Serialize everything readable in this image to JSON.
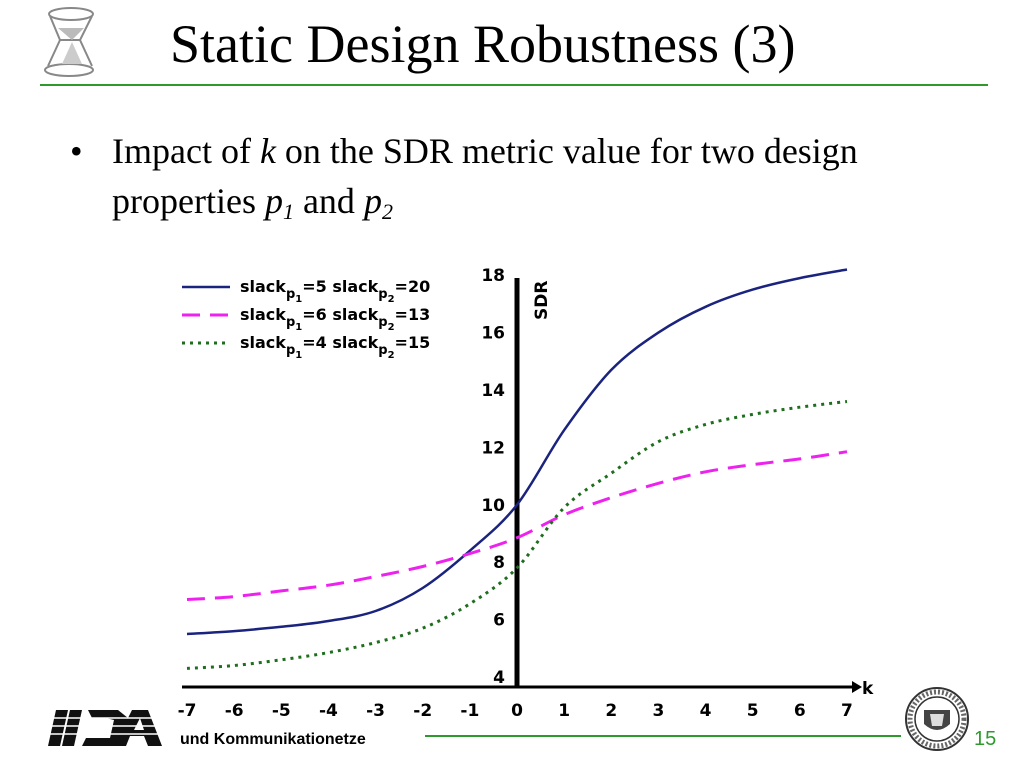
{
  "slide": {
    "title": "Static Design Robustness (3)",
    "bullet": {
      "part1": "Impact of ",
      "var_k": "k",
      "part2": " on the SDR metric value for two design properties ",
      "var_p": "p",
      "sub_1": "1",
      "and_word": " and ",
      "sub_2": "2"
    },
    "footer_text": "und Kommunikationetze",
    "page_number": "15",
    "accent_color": "#2e9a2e"
  },
  "chart_data": {
    "type": "line",
    "ylabel": "SDR",
    "xlabel": "k",
    "xlim": [
      -7,
      7
    ],
    "ylim": [
      4,
      18
    ],
    "x_ticks": [
      -7,
      -6,
      -5,
      -4,
      -3,
      -2,
      -1,
      0,
      1,
      2,
      3,
      4,
      5,
      6,
      7
    ],
    "y_ticks": [
      4,
      6,
      8,
      10,
      12,
      14,
      16,
      18
    ],
    "grid": false,
    "legend_position": "top-left",
    "series": [
      {
        "legend": [
          "slack",
          "p",
          "1",
          "=5  slack",
          "p",
          "2",
          "=20"
        ],
        "color": "#1a237e",
        "dash": "solid",
        "x": [
          -7,
          -6,
          -5,
          -4,
          -3,
          -2,
          -1,
          0,
          1,
          2,
          3,
          4,
          5,
          6,
          7
        ],
        "y": [
          5.5,
          5.6,
          5.75,
          5.95,
          6.3,
          7.1,
          8.4,
          10.0,
          12.6,
          14.7,
          16.0,
          16.9,
          17.5,
          17.9,
          18.2
        ]
      },
      {
        "legend": [
          "slack",
          "p",
          "1",
          "=6  slack",
          "p",
          "2",
          "=13"
        ],
        "color": "#ee22ee",
        "dash": "long-dash",
        "x": [
          -7,
          -6,
          -5,
          -4,
          -3,
          -2,
          -1,
          0,
          1,
          2,
          3,
          4,
          5,
          6,
          7
        ],
        "y": [
          6.7,
          6.8,
          7.0,
          7.2,
          7.5,
          7.85,
          8.3,
          8.85,
          9.65,
          10.25,
          10.75,
          11.15,
          11.4,
          11.6,
          11.85
        ]
      },
      {
        "legend": [
          "slack",
          "p",
          "1",
          "=4  slack",
          "p",
          "2",
          "=15"
        ],
        "color": "#1e6e1e",
        "dash": "dotted",
        "x": [
          -7,
          -6,
          -5,
          -4,
          -3,
          -2,
          -1,
          0,
          1,
          2,
          3,
          4,
          5,
          6,
          7
        ],
        "y": [
          4.3,
          4.4,
          4.6,
          4.85,
          5.2,
          5.7,
          6.55,
          7.8,
          9.9,
          11.1,
          12.2,
          12.8,
          13.15,
          13.4,
          13.6
        ]
      }
    ]
  }
}
